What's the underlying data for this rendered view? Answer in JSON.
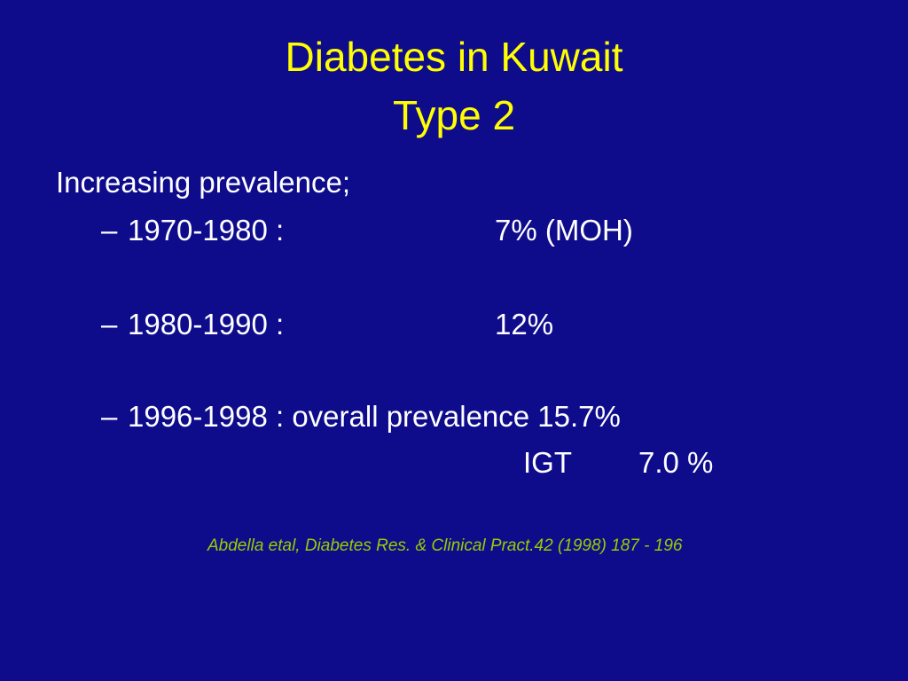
{
  "slide": {
    "title_line1": "Diabetes in Kuwait",
    "title_line2": "Type 2",
    "lead": "Increasing prevalence;",
    "bullets": [
      {
        "dash": "–",
        "label": "1970-1980 :",
        "value": "7% (MOH)"
      },
      {
        "dash": "–",
        "label": "1980-1990 :",
        "value": "12%"
      },
      {
        "dash": "–",
        "label": "1996-1998 : overall prevalence 15.7%",
        "value": ""
      }
    ],
    "igt": {
      "label": "IGT",
      "value": "7.0 %"
    },
    "citation": "Abdella etal, Diabetes Res. & Clinical Pract.42 (1998) 187 - 196"
  },
  "colors": {
    "background": "#0f0c8c",
    "title": "#ffff00",
    "body": "#ffffff",
    "citation": "#99cc00"
  }
}
